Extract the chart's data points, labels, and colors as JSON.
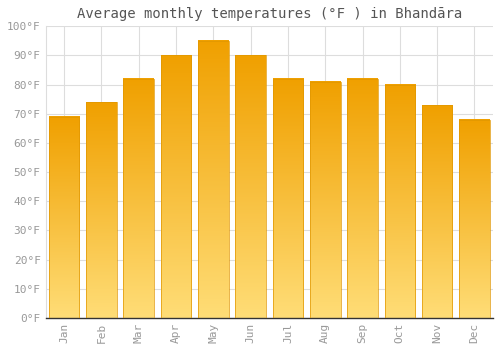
{
  "title": "Average monthly temperatures (°F ) in Bhandāra",
  "months": [
    "Jan",
    "Feb",
    "Mar",
    "Apr",
    "May",
    "Jun",
    "Jul",
    "Aug",
    "Sep",
    "Oct",
    "Nov",
    "Dec"
  ],
  "values": [
    69,
    74,
    82,
    90,
    95,
    90,
    82,
    81,
    82,
    80,
    73,
    68
  ],
  "bar_color_top": "#F5A800",
  "bar_color_bottom": "#FFD966",
  "bar_color_edge": "#E09600",
  "ylim": [
    0,
    100
  ],
  "yticks": [
    0,
    10,
    20,
    30,
    40,
    50,
    60,
    70,
    80,
    90,
    100
  ],
  "ytick_labels": [
    "0°F",
    "10°F",
    "20°F",
    "30°F",
    "40°F",
    "50°F",
    "60°F",
    "70°F",
    "80°F",
    "90°F",
    "100°F"
  ],
  "background_color": "#FFFFFF",
  "grid_color": "#DDDDDD",
  "title_fontsize": 10,
  "tick_fontsize": 8,
  "bar_width": 0.82
}
